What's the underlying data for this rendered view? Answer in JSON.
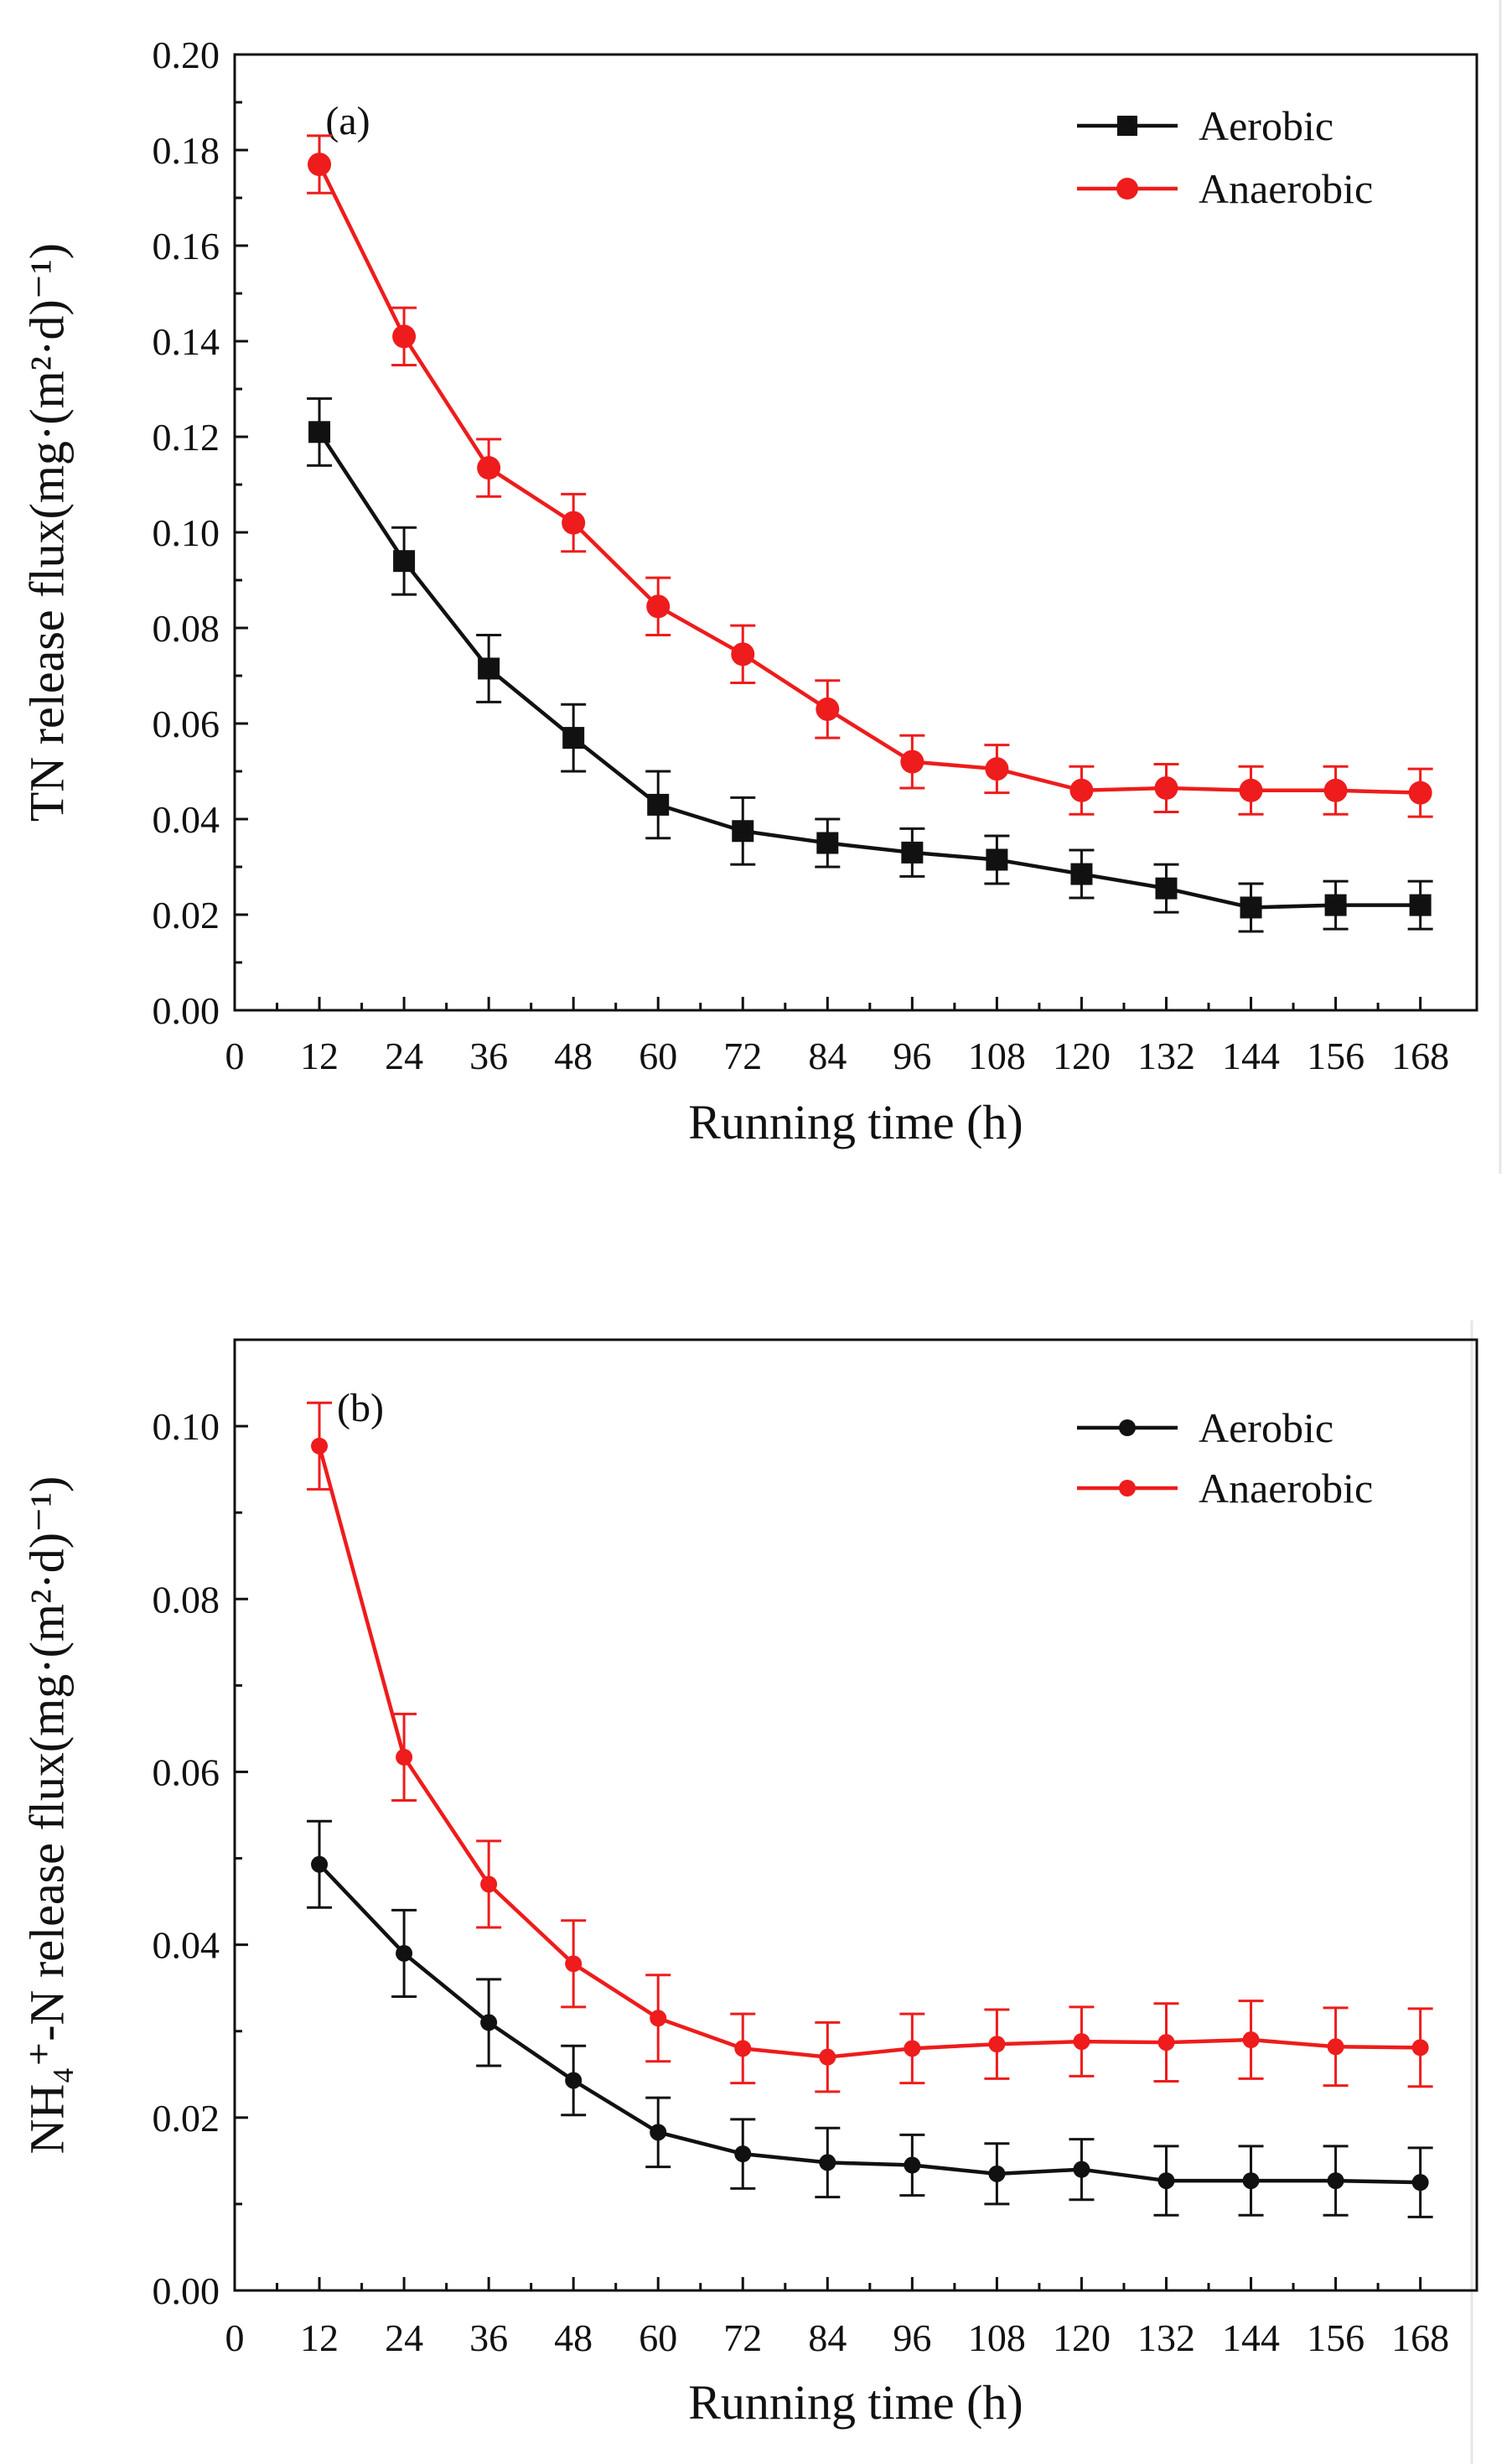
{
  "chart_data": [
    {
      "type": "line",
      "panel_label": "(a)",
      "xlabel": "Running time (h)",
      "ylabel": "TN release flux(mg·(m²·d)⁻¹)",
      "xlim": [
        0,
        176
      ],
      "ylim": [
        0,
        0.2
      ],
      "x_ticks": [
        "0",
        "12",
        "24",
        "36",
        "48",
        "60",
        "72",
        "84",
        "96",
        "108",
        "120",
        "132",
        "144",
        "156",
        "168"
      ],
      "y_ticks": [
        "0.00",
        "0.02",
        "0.04",
        "0.06",
        "0.08",
        "0.10",
        "0.12",
        "0.14",
        "0.16",
        "0.18",
        "0.20"
      ],
      "grid": false,
      "legend_position": "top-right",
      "x": [
        12,
        24,
        36,
        48,
        60,
        72,
        84,
        96,
        108,
        120,
        132,
        144,
        156,
        168
      ],
      "series": [
        {
          "name": "Aerobic",
          "color": "#111111",
          "marker": "square",
          "values": [
            0.121,
            0.094,
            0.0715,
            0.057,
            0.043,
            0.0375,
            0.035,
            0.033,
            0.0315,
            0.0285,
            0.0255,
            0.0215,
            0.022,
            0.022
          ],
          "errors": [
            0.007,
            0.007,
            0.007,
            0.007,
            0.007,
            0.007,
            0.005,
            0.005,
            0.005,
            0.005,
            0.005,
            0.005,
            0.005,
            0.005
          ]
        },
        {
          "name": "Anaerobic",
          "color": "#ee1c1c",
          "marker": "circle",
          "values": [
            0.177,
            0.141,
            0.1135,
            0.102,
            0.0845,
            0.0745,
            0.063,
            0.052,
            0.0505,
            0.046,
            0.0465,
            0.046,
            0.046,
            0.0455
          ],
          "errors": [
            0.006,
            0.006,
            0.006,
            0.006,
            0.006,
            0.006,
            0.006,
            0.0055,
            0.005,
            0.005,
            0.005,
            0.005,
            0.005,
            0.005
          ]
        }
      ]
    },
    {
      "type": "line",
      "panel_label": "(b)",
      "xlabel": "Running time (h)",
      "ylabel": "NH₄⁺-N  release flux(mg·(m²·d)⁻¹)",
      "xlim": [
        0,
        176
      ],
      "ylim": [
        0,
        0.11
      ],
      "x_ticks": [
        "0",
        "12",
        "24",
        "36",
        "48",
        "60",
        "72",
        "84",
        "96",
        "108",
        "120",
        "132",
        "144",
        "156",
        "168"
      ],
      "y_ticks": [
        "0.00",
        "0.02",
        "0.04",
        "0.06",
        "0.08",
        "0.10"
      ],
      "grid": false,
      "legend_position": "top-right",
      "x": [
        12,
        24,
        36,
        48,
        60,
        72,
        84,
        96,
        108,
        120,
        132,
        144,
        156,
        168
      ],
      "series": [
        {
          "name": "Aerobic",
          "color": "#111111",
          "marker": "circle",
          "values": [
            0.0493,
            0.039,
            0.031,
            0.0243,
            0.0183,
            0.0158,
            0.0148,
            0.0145,
            0.0135,
            0.014,
            0.0127,
            0.0127,
            0.0127,
            0.0125
          ],
          "errors": [
            0.005,
            0.005,
            0.005,
            0.004,
            0.004,
            0.004,
            0.004,
            0.0035,
            0.0035,
            0.0035,
            0.004,
            0.004,
            0.004,
            0.004
          ]
        },
        {
          "name": "Anaerobic",
          "color": "#ee1c1c",
          "marker": "circle",
          "values": [
            0.0977,
            0.0617,
            0.047,
            0.0378,
            0.0315,
            0.028,
            0.027,
            0.028,
            0.0285,
            0.0288,
            0.0287,
            0.029,
            0.0282,
            0.0281
          ],
          "errors": [
            0.005,
            0.005,
            0.005,
            0.005,
            0.005,
            0.004,
            0.004,
            0.004,
            0.004,
            0.004,
            0.0045,
            0.0045,
            0.0045,
            0.0045
          ]
        }
      ]
    }
  ]
}
